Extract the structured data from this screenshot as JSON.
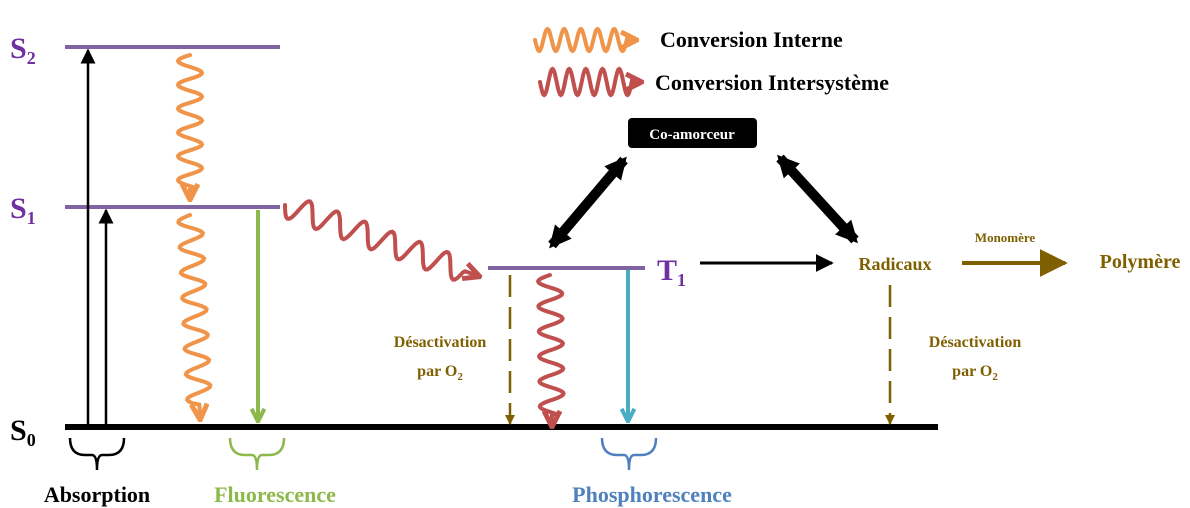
{
  "levels": {
    "s2": {
      "label": "S",
      "sub": "2"
    },
    "s1": {
      "label": "S",
      "sub": "1"
    },
    "s0": {
      "label": "S",
      "sub": "0"
    },
    "t1": {
      "label": "T",
      "sub": "1"
    }
  },
  "legend": [
    "Conversion Interne",
    "Conversion Intersystème"
  ],
  "coinitiator": "Co-amorceur",
  "radicals": "Radicaux",
  "monomer": "Monomère",
  "polymer": "Polymère",
  "deactivation": [
    {
      "line1": "Désactivation",
      "line2": "par O",
      "sub": "2"
    },
    {
      "line1": "Désactivation",
      "line2": "par O",
      "sub": "2"
    }
  ],
  "processes": [
    "Absorption",
    "Fluorescence",
    "Phosphorescence"
  ]
}
